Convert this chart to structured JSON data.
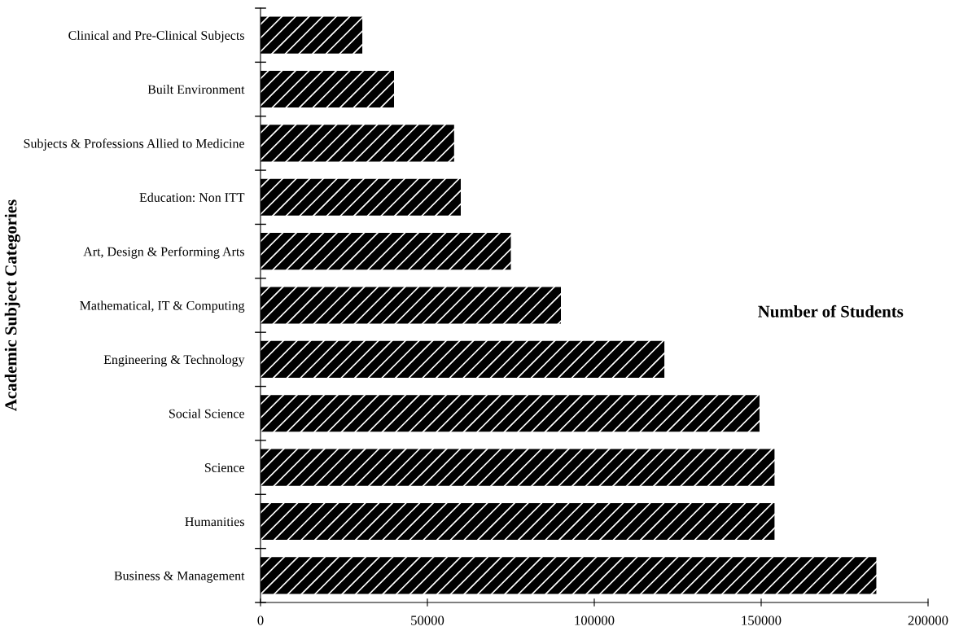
{
  "chart_data": {
    "type": "bar",
    "orientation": "horizontal",
    "xlabel": "Number of Students",
    "ylabel": "Academic Subject Categories",
    "categories": [
      "Clinical and Pre-Clinical Subjects",
      "Built Environment",
      "Subjects & Professions Allied to Medicine",
      "Education: Non ITT",
      "Art, Design & Performing Arts",
      "Mathematical, IT & Computing",
      "Engineering & Technology",
      "Social Science",
      "Science",
      "Humanities",
      "Business & Management"
    ],
    "values": [
      30500,
      40000,
      58000,
      60000,
      75000,
      90000,
      121000,
      149500,
      154000,
      154000,
      184500
    ],
    "color": "#000000",
    "xlim": [
      0,
      200000
    ],
    "xticks": [
      0,
      50000,
      100000,
      150000,
      200000
    ],
    "grid": false,
    "legend": false
  }
}
